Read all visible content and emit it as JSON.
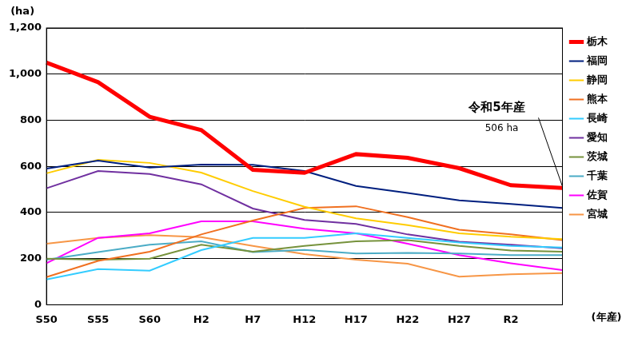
{
  "chart_data": {
    "type": "line",
    "y_label": "(ha)",
    "x_label": "(年産)",
    "annotation": [
      "令和5年産",
      "506 ha"
    ],
    "categories": [
      "S50",
      "S55",
      "S60",
      "H2",
      "H7",
      "H12",
      "H17",
      "H22",
      "H27",
      "R2",
      null
    ],
    "series": [
      {
        "name": "栃木",
        "color": "#ff0000",
        "values": [
          1050,
          965,
          815,
          757,
          585,
          572,
          653,
          637,
          592,
          518,
          506
        ]
      },
      {
        "name": "福岡",
        "color": "#001f7f",
        "values": [
          590,
          625,
          595,
          608,
          607,
          580,
          515,
          485,
          453,
          437,
          420
        ]
      },
      {
        "name": "静岡",
        "color": "#ffcc00",
        "values": [
          570,
          628,
          615,
          573,
          493,
          425,
          375,
          345,
          310,
          295,
          285
        ]
      },
      {
        "name": "熊本",
        "color": "#f07020",
        "values": [
          120,
          190,
          230,
          305,
          365,
          420,
          427,
          380,
          325,
          305,
          280
        ]
      },
      {
        "name": "長崎",
        "color": "#33ccff",
        "values": [
          110,
          155,
          148,
          237,
          290,
          290,
          310,
          290,
          270,
          255,
          248
        ]
      },
      {
        "name": "愛知",
        "color": "#7030a0",
        "values": [
          505,
          580,
          567,
          522,
          417,
          368,
          350,
          305,
          273,
          260,
          245
        ]
      },
      {
        "name": "茨城",
        "color": "#76923c",
        "values": [
          200,
          195,
          200,
          260,
          230,
          255,
          275,
          280,
          255,
          235,
          230
        ]
      },
      {
        "name": "千葉",
        "color": "#4bacc6",
        "values": [
          195,
          228,
          260,
          275,
          228,
          238,
          222,
          225,
          222,
          215,
          215
        ]
      },
      {
        "name": "佐賀",
        "color": "#ff00ff",
        "values": [
          180,
          290,
          310,
          362,
          362,
          330,
          310,
          265,
          215,
          180,
          150
        ]
      },
      {
        "name": "宮城",
        "color": "#f79646",
        "values": [
          265,
          290,
          302,
          293,
          255,
          220,
          195,
          178,
          122,
          132,
          137
        ]
      }
    ],
    "ylim": [
      0,
      1200
    ],
    "yticks": [
      0,
      200,
      400,
      600,
      800,
      {
        "value": 1000,
        "label": "1,000"
      },
      {
        "value": 1200,
        "label": "1,200"
      }
    ],
    "grid": true,
    "legend": "right"
  }
}
